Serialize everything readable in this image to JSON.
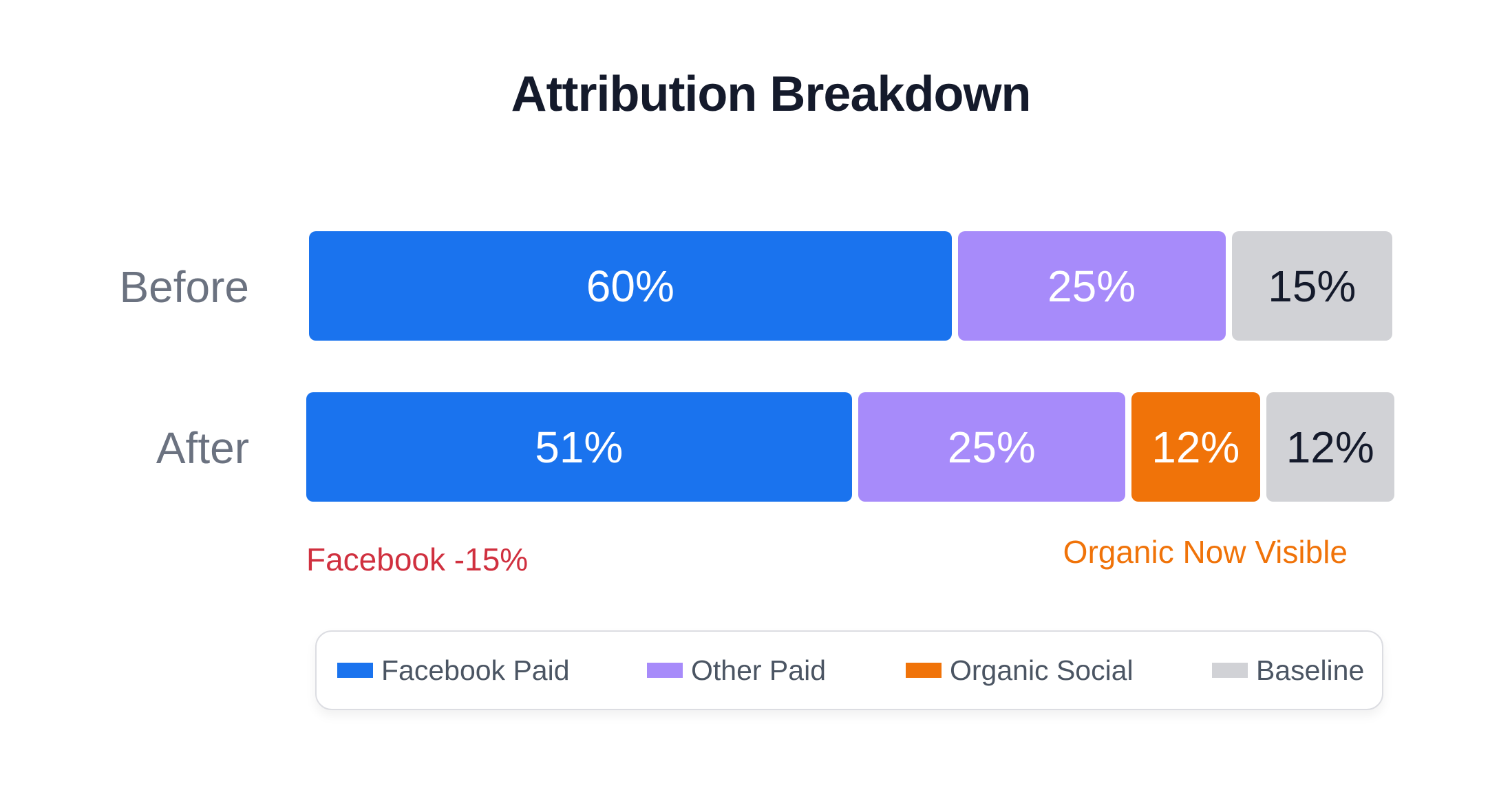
{
  "chart_data": {
    "type": "bar",
    "orientation": "horizontal",
    "stacked": true,
    "title": "Attribution Breakdown",
    "categories": [
      "Before",
      "After"
    ],
    "series": [
      {
        "name": "Facebook Paid",
        "color": "#1a73ee",
        "values": [
          60,
          51
        ],
        "labels": [
          "60%",
          "51%"
        ]
      },
      {
        "name": "Other Paid",
        "color": "#a78bfa",
        "values": [
          25,
          25
        ],
        "labels": [
          "25%",
          "25%"
        ]
      },
      {
        "name": "Organic Social",
        "color": "#f07309",
        "values": [
          0,
          12
        ],
        "labels": [
          "",
          "12%"
        ]
      },
      {
        "name": "Baseline",
        "color": "#d1d2d6",
        "values": [
          15,
          12
        ],
        "labels": [
          "15%",
          "12%"
        ]
      }
    ],
    "annotations": [
      {
        "text": "Facebook -15%",
        "color": "#d0303f"
      },
      {
        "text": "Organic Now Visible",
        "color": "#f07309"
      }
    ],
    "legend_position": "bottom"
  }
}
